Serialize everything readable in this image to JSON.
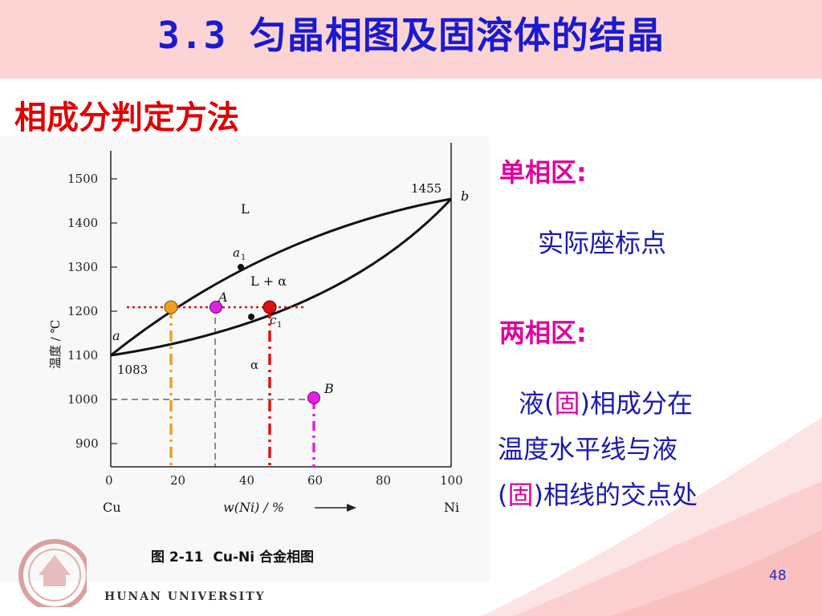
{
  "title": "3.3 匀晶相图及固溶体的结晶",
  "subtitle": "相成分判定方法",
  "diagram": {
    "y_ticks": [
      "1500",
      "1400",
      "1300",
      "1200",
      "1100",
      "1000",
      "900"
    ],
    "x_ticks": [
      "0",
      "20",
      "40",
      "60",
      "80",
      "100"
    ],
    "left_element": "Cu",
    "right_element": "Ni",
    "ylabel": "温度 / ℃",
    "xlabel": "w(Ni) / %",
    "point_1455": "1455",
    "point_1083": "1083",
    "label_L": "L",
    "label_L_alpha": "L + α",
    "label_alpha": "α",
    "label_a": "a",
    "label_b": "b",
    "label_a1": "a",
    "label_a1_sub": "1",
    "label_c1": "c",
    "label_c1_sub": "1",
    "label_A": "A",
    "label_B": "B",
    "caption_num": "图 2-11",
    "caption_text": "Cu-Ni 合金相图"
  },
  "right_panel": {
    "single_phase_label": "单相区:",
    "single_phase_desc": "实际座标点",
    "two_phase_label": "两相区:",
    "two_phase_line1_a": "液(",
    "two_phase_line1_b": "固",
    "two_phase_line1_c": ")相成分在",
    "two_phase_line2": "温度水平线与液",
    "two_phase_line3_a": "(",
    "two_phase_line3_b": "固",
    "two_phase_line3_c": ")相线的交点处"
  },
  "footer": {
    "university": "HUNAN UNIVERSITY",
    "page_number": "48"
  },
  "colors": {
    "title_blue": "#1a1ad0",
    "subtitle_red": "#e00000",
    "header_pink": "#fcd4d4",
    "orange_marker": "#f0a020",
    "magenta_marker": "#e020e0",
    "red_marker": "#e01010"
  }
}
